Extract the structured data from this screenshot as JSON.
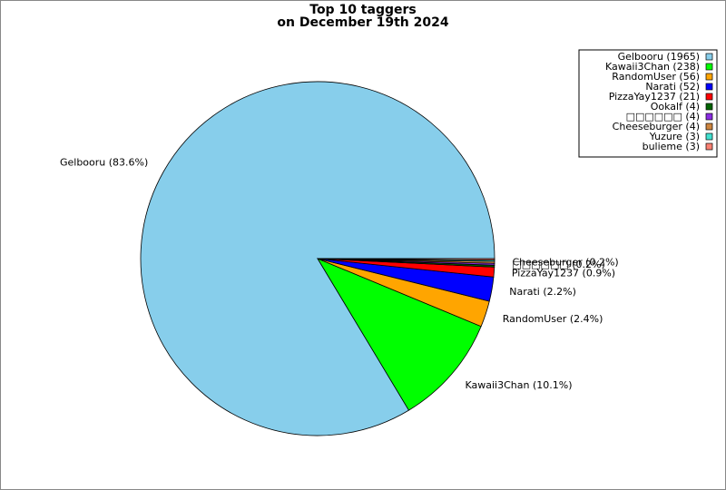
{
  "chart_data": {
    "type": "pie",
    "title_lines": [
      "Top 10 taggers",
      "on December 19th 2024"
    ],
    "categories": [
      "Gelbooru",
      "Kawaii3Chan",
      "RandomUser",
      "Narati",
      "PizzaYay1237",
      "Ookalf",
      "□□□□□□",
      "Cheeseburger",
      "Yuzure",
      "bulieme"
    ],
    "series": [
      {
        "values": [
          1965,
          238,
          56,
          52,
          21,
          4,
          4,
          4,
          3,
          3
        ],
        "legend_labels": [
          "Gelbooru (1965)",
          "Kawaii3Chan (238)",
          "RandomUser (56)",
          "Narati (52)",
          "PizzaYay1237 (21)",
          "Ookalf (4)",
          "□□□□□□ (4)",
          "Cheeseburger (4)",
          "Yuzure (3)",
          "bulieme (3)"
        ],
        "slice_labels": [
          "Gelbooru (83.6%)",
          "Kawaii3Chan (10.1%)",
          "RandomUser (2.4%)",
          "Narati (2.2%)",
          "PizzaYay1237 (0.9%)",
          null,
          "□□□□□□ (0.2%)",
          "Cheeseburger (0.2%)",
          null,
          null
        ],
        "colors": [
          "#87ceeb",
          "#00ff00",
          "#ffa500",
          "#0000ff",
          "#ff0000",
          "#006400",
          "#8a2be2",
          "#cd853f",
          "#40e0d0",
          "#fa8072"
        ]
      }
    ],
    "legend": "upper-right"
  }
}
